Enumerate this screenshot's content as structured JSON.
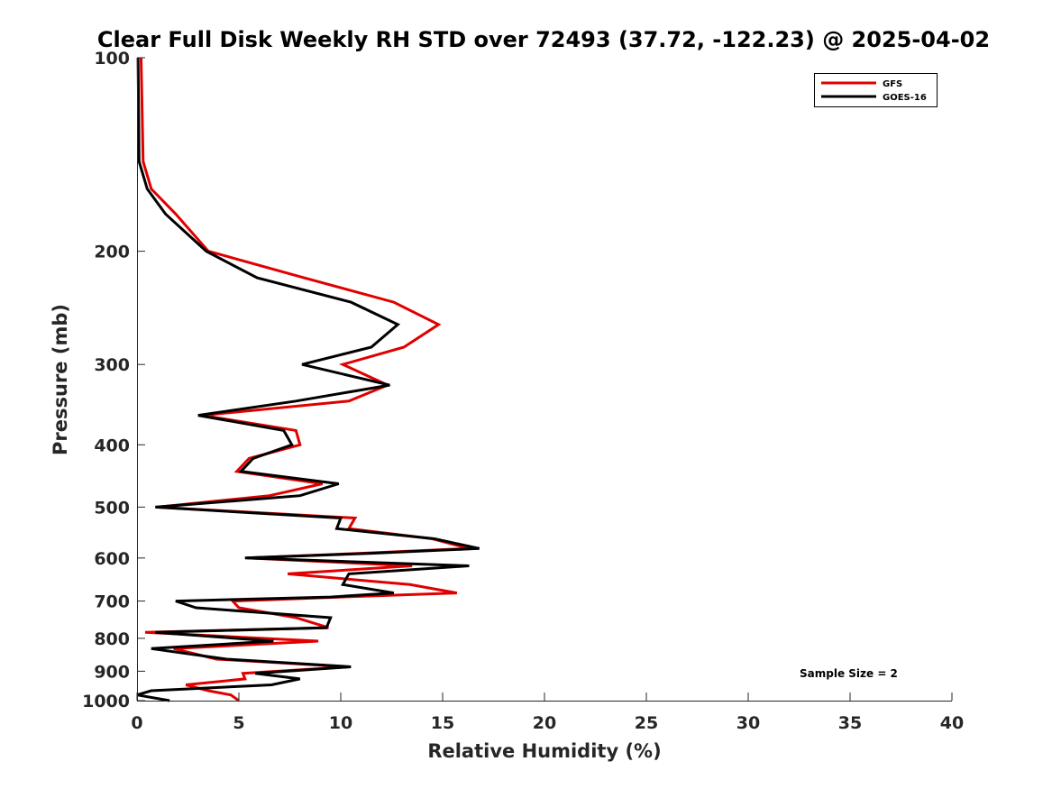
{
  "chart_data": {
    "type": "line",
    "title": "Clear Full Disk Weekly RH STD over 72493 (37.72, -122.23) @ 2025-04-02",
    "xlabel": "Relative Humidity (%)",
    "ylabel": "Pressure (mb)",
    "xlim": [
      0,
      40
    ],
    "ylim": [
      100,
      1000
    ],
    "yscale": "log",
    "y_reversed": true,
    "x_ticks": [
      "0",
      "5",
      "10",
      "15",
      "20",
      "25",
      "30",
      "35",
      "40"
    ],
    "y_ticks": [
      "100",
      "200",
      "300",
      "400",
      "500",
      "600",
      "700",
      "800",
      "900",
      "1000"
    ],
    "grid": false,
    "legend_position": "top-right",
    "annotation": "Sample Size = 2",
    "series": [
      {
        "name": "GFS",
        "color": "#e00000",
        "points": [
          {
            "rh": 0.2,
            "p": 100
          },
          {
            "rh": 0.3,
            "p": 145
          },
          {
            "rh": 0.7,
            "p": 160
          },
          {
            "rh": 1.9,
            "p": 175
          },
          {
            "rh": 3.5,
            "p": 200
          },
          {
            "rh": 8.2,
            "p": 220
          },
          {
            "rh": 12.6,
            "p": 240
          },
          {
            "rh": 14.8,
            "p": 260
          },
          {
            "rh": 13.1,
            "p": 282
          },
          {
            "rh": 10.1,
            "p": 300
          },
          {
            "rh": 12.3,
            "p": 323
          },
          {
            "rh": 10.4,
            "p": 342
          },
          {
            "rh": 3.2,
            "p": 360
          },
          {
            "rh": 7.8,
            "p": 380
          },
          {
            "rh": 8.0,
            "p": 400
          },
          {
            "rh": 5.5,
            "p": 420
          },
          {
            "rh": 4.9,
            "p": 440
          },
          {
            "rh": 9.1,
            "p": 460
          },
          {
            "rh": 6.5,
            "p": 480
          },
          {
            "rh": 1.0,
            "p": 500
          },
          {
            "rh": 10.7,
            "p": 520
          },
          {
            "rh": 10.4,
            "p": 540
          },
          {
            "rh": 14.5,
            "p": 560
          },
          {
            "rh": 16.3,
            "p": 580
          },
          {
            "rh": 11.0,
            "p": 590
          },
          {
            "rh": 5.4,
            "p": 600
          },
          {
            "rh": 13.5,
            "p": 617
          },
          {
            "rh": 7.4,
            "p": 635
          },
          {
            "rh": 13.4,
            "p": 660
          },
          {
            "rh": 15.7,
            "p": 680
          },
          {
            "rh": 10.0,
            "p": 690
          },
          {
            "rh": 4.7,
            "p": 700
          },
          {
            "rh": 5.0,
            "p": 717
          },
          {
            "rh": 7.8,
            "p": 743
          },
          {
            "rh": 9.4,
            "p": 770
          },
          {
            "rh": 0.4,
            "p": 783
          },
          {
            "rh": 8.9,
            "p": 808
          },
          {
            "rh": 1.8,
            "p": 830
          },
          {
            "rh": 3.9,
            "p": 862
          },
          {
            "rh": 10.4,
            "p": 886
          },
          {
            "rh": 5.2,
            "p": 907
          },
          {
            "rh": 5.3,
            "p": 925
          },
          {
            "rh": 2.4,
            "p": 945
          },
          {
            "rh": 3.5,
            "p": 965
          },
          {
            "rh": 4.6,
            "p": 980
          },
          {
            "rh": 5.0,
            "p": 1000
          }
        ]
      },
      {
        "name": "GOES-16",
        "color": "#000000",
        "points": [
          {
            "rh": 0.05,
            "p": 100
          },
          {
            "rh": 0.1,
            "p": 145
          },
          {
            "rh": 0.5,
            "p": 160
          },
          {
            "rh": 1.4,
            "p": 175
          },
          {
            "rh": 3.4,
            "p": 200
          },
          {
            "rh": 5.9,
            "p": 220
          },
          {
            "rh": 10.5,
            "p": 240
          },
          {
            "rh": 12.8,
            "p": 260
          },
          {
            "rh": 11.5,
            "p": 282
          },
          {
            "rh": 8.1,
            "p": 300
          },
          {
            "rh": 12.4,
            "p": 323
          },
          {
            "rh": 7.8,
            "p": 342
          },
          {
            "rh": 3.0,
            "p": 360
          },
          {
            "rh": 7.2,
            "p": 380
          },
          {
            "rh": 7.6,
            "p": 400
          },
          {
            "rh": 5.7,
            "p": 420
          },
          {
            "rh": 5.1,
            "p": 440
          },
          {
            "rh": 9.9,
            "p": 460
          },
          {
            "rh": 8.0,
            "p": 480
          },
          {
            "rh": 0.9,
            "p": 500
          },
          {
            "rh": 10.0,
            "p": 520
          },
          {
            "rh": 9.8,
            "p": 540
          },
          {
            "rh": 14.6,
            "p": 560
          },
          {
            "rh": 16.8,
            "p": 580
          },
          {
            "rh": 11.5,
            "p": 590
          },
          {
            "rh": 5.3,
            "p": 600
          },
          {
            "rh": 16.3,
            "p": 617
          },
          {
            "rh": 10.4,
            "p": 635
          },
          {
            "rh": 10.1,
            "p": 660
          },
          {
            "rh": 12.6,
            "p": 680
          },
          {
            "rh": 9.5,
            "p": 690
          },
          {
            "rh": 1.9,
            "p": 700
          },
          {
            "rh": 2.9,
            "p": 717
          },
          {
            "rh": 9.5,
            "p": 743
          },
          {
            "rh": 9.3,
            "p": 770
          },
          {
            "rh": 0.9,
            "p": 783
          },
          {
            "rh": 6.7,
            "p": 808
          },
          {
            "rh": 0.7,
            "p": 830
          },
          {
            "rh": 4.4,
            "p": 862
          },
          {
            "rh": 10.5,
            "p": 886
          },
          {
            "rh": 5.8,
            "p": 907
          },
          {
            "rh": 8.0,
            "p": 925
          },
          {
            "rh": 6.6,
            "p": 945
          },
          {
            "rh": 0.7,
            "p": 965
          },
          {
            "rh": 0.0,
            "p": 980
          },
          {
            "rh": 1.6,
            "p": 1000
          }
        ]
      }
    ]
  }
}
